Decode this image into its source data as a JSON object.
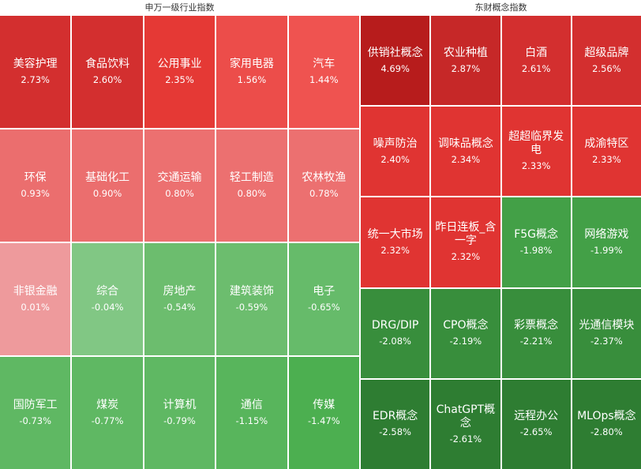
{
  "left_panel": {
    "title": "申万一级行业指数",
    "tiles": [
      {
        "name": "美容护理",
        "pct": "2.73%",
        "color": "#d32f2f"
      },
      {
        "name": "食品饮料",
        "pct": "2.60%",
        "color": "#d32f2f"
      },
      {
        "name": "公用事业",
        "pct": "2.35%",
        "color": "#e53935"
      },
      {
        "name": "家用电器",
        "pct": "1.56%",
        "color": "#ec4d4a"
      },
      {
        "name": "汽车",
        "pct": "1.44%",
        "color": "#ef5350"
      },
      {
        "name": "环保",
        "pct": "0.93%",
        "color": "#eb6e6e"
      },
      {
        "name": "基础化工",
        "pct": "0.90%",
        "color": "#eb6e6e"
      },
      {
        "name": "交通运输",
        "pct": "0.80%",
        "color": "#ec7070"
      },
      {
        "name": "轻工制造",
        "pct": "0.80%",
        "color": "#ec7070"
      },
      {
        "name": "农林牧渔",
        "pct": "0.78%",
        "color": "#ec7070"
      },
      {
        "name": "非银金融",
        "pct": "0.01%",
        "color": "#ee9a9c"
      },
      {
        "name": "综合",
        "pct": "-0.04%",
        "color": "#81c784"
      },
      {
        "name": "房地产",
        "pct": "-0.54%",
        "color": "#6cbd6e"
      },
      {
        "name": "建筑装饰",
        "pct": "-0.59%",
        "color": "#6cbd6e"
      },
      {
        "name": "电子",
        "pct": "-0.65%",
        "color": "#66bb6a"
      },
      {
        "name": "国防军工",
        "pct": "-0.73%",
        "color": "#5fb863"
      },
      {
        "name": "煤炭",
        "pct": "-0.77%",
        "color": "#5fb863"
      },
      {
        "name": "计算机",
        "pct": "-0.79%",
        "color": "#5fb863"
      },
      {
        "name": "通信",
        "pct": "-1.15%",
        "color": "#58b55c"
      },
      {
        "name": "传媒",
        "pct": "-1.47%",
        "color": "#4caf50"
      }
    ]
  },
  "right_panel": {
    "title": "东财概念指数",
    "tiles": [
      {
        "name": "供销社概念",
        "pct": "4.69%",
        "color": "#b71c1c"
      },
      {
        "name": "农业种植",
        "pct": "2.87%",
        "color": "#c62828"
      },
      {
        "name": "白酒",
        "pct": "2.61%",
        "color": "#d32f2f"
      },
      {
        "name": "超级品牌",
        "pct": "2.56%",
        "color": "#d32f2f"
      },
      {
        "name": "噪声防治",
        "pct": "2.40%",
        "color": "#e03432"
      },
      {
        "name": "调味品概念",
        "pct": "2.34%",
        "color": "#e03432"
      },
      {
        "name": "超超临界发电",
        "pct": "2.33%",
        "color": "#e03432"
      },
      {
        "name": "成渝特区",
        "pct": "2.33%",
        "color": "#e03432"
      },
      {
        "name": "统一大市场",
        "pct": "2.32%",
        "color": "#e03432"
      },
      {
        "name": "昨日连板_含一字",
        "pct": "2.32%",
        "color": "#e03432"
      },
      {
        "name": "F5G概念",
        "pct": "-1.98%",
        "color": "#43a047"
      },
      {
        "name": "网络游戏",
        "pct": "-1.99%",
        "color": "#43a047"
      },
      {
        "name": "DRG/DIP",
        "pct": "-2.08%",
        "color": "#388e3c"
      },
      {
        "name": "CPO概念",
        "pct": "-2.19%",
        "color": "#388e3c"
      },
      {
        "name": "彩票概念",
        "pct": "-2.21%",
        "color": "#388e3c"
      },
      {
        "name": "光通信模块",
        "pct": "-2.37%",
        "color": "#388e3c"
      },
      {
        "name": "EDR概念",
        "pct": "-2.58%",
        "color": "#2e7d32"
      },
      {
        "name": "ChatGPT概念",
        "pct": "-2.61%",
        "color": "#2e7d32"
      },
      {
        "name": "远程办公",
        "pct": "-2.65%",
        "color": "#2e7d32"
      },
      {
        "name": "MLOps概念",
        "pct": "-2.80%",
        "color": "#2e7d32"
      }
    ]
  }
}
